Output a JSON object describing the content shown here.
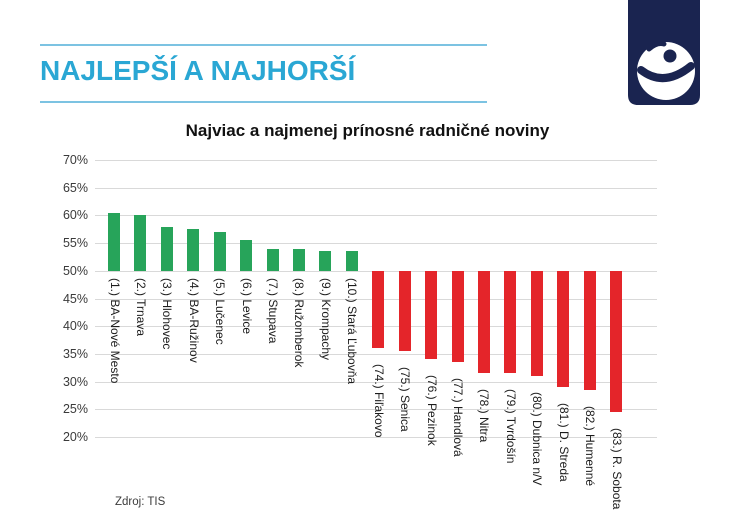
{
  "header": {
    "title": "NAJLEPŠÍ A NAJHORŠÍ",
    "accent_color": "#2aa7d4",
    "rule_color": "#7cc3e2"
  },
  "logo": {
    "name": "transparency-international-logo",
    "background_color": "#1a2450",
    "mark_color": "#ffffff"
  },
  "footer": {
    "source": "Zdroj: TIS"
  },
  "chart_data": {
    "type": "bar",
    "title": "Najviac a najmenej prínosné radničné noviny",
    "xlabel": "",
    "ylabel": "",
    "ylim": [
      20,
      70
    ],
    "ytick_step": 5,
    "ytick_suffix": "%",
    "baseline": 50,
    "grid": true,
    "legend": "none",
    "categories": [
      "(1.) BA-Nové Mesto",
      "(2.) Trnava",
      "(3.) Hlohovec",
      "(4.) BA-Ružinov",
      "(5.) Lučenec",
      "(6.) Levice",
      "(7.) Stupava",
      "(8.) Ružomberok",
      "(9.) Krompachy",
      "(10.) Stará Ľubovňa",
      "(74.) Fiľakovo",
      "(75.) Senica",
      "(76.) Pezinok",
      "(77.) Handlová",
      "(78.) Nitra",
      "(79.) Tvrdošín",
      "(80.) Dubnica n/V",
      "(81.) D. Streda",
      "(82.) Humenné",
      "(83.) R. Sobota"
    ],
    "values": [
      60.5,
      60,
      58,
      57.5,
      57,
      55.5,
      54,
      54,
      53.5,
      53.5,
      36,
      35.5,
      34,
      33.5,
      31.5,
      31.5,
      31,
      29,
      28.5,
      24.5
    ],
    "colors": {
      "above_baseline": "#27a45a",
      "below_baseline": "#e4252a"
    }
  }
}
